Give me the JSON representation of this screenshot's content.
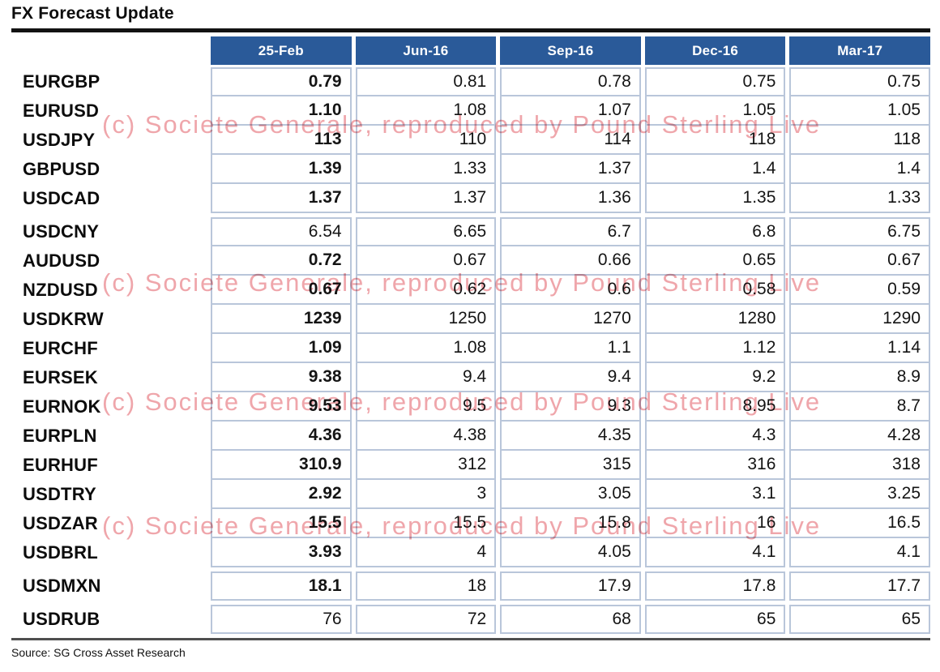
{
  "title": "FX Forecast Update",
  "source": "Source: SG Cross Asset Research",
  "watermark": {
    "text": "(c) Societe Generale, reproduced by Pound Sterling Live",
    "color": "#efa6ab"
  },
  "colors": {
    "header_bg": "#2a5a99",
    "header_text": "#ffffff",
    "grid_border": "#b9c6da"
  },
  "chart_data": {
    "type": "table",
    "title": "FX Forecast Update",
    "columns": [
      "25-Feb",
      "Jun-16",
      "Sep-16",
      "Dec-16",
      "Mar-17"
    ],
    "sections": [
      {
        "rows": [
          {
            "pair": "EURGBP",
            "values": [
              "0.79",
              "0.81",
              "0.78",
              "0.75",
              "0.75"
            ],
            "spot_bold": true
          },
          {
            "pair": "EURUSD",
            "values": [
              "1.10",
              "1.08",
              "1.07",
              "1.05",
              "1.05"
            ],
            "spot_bold": true
          },
          {
            "pair": "USDJPY",
            "values": [
              "113",
              "110",
              "114",
              "118",
              "118"
            ],
            "spot_bold": true
          },
          {
            "pair": "GBPUSD",
            "values": [
              "1.39",
              "1.33",
              "1.37",
              "1.4",
              "1.4"
            ],
            "spot_bold": true
          },
          {
            "pair": "USDCAD",
            "values": [
              "1.37",
              "1.37",
              "1.36",
              "1.35",
              "1.33"
            ],
            "spot_bold": true
          }
        ]
      },
      {
        "rows": [
          {
            "pair": "USDCNY",
            "values": [
              "6.54",
              "6.65",
              "6.7",
              "6.8",
              "6.75"
            ],
            "spot_bold": false
          },
          {
            "pair": "AUDUSD",
            "values": [
              "0.72",
              "0.67",
              "0.66",
              "0.65",
              "0.67"
            ],
            "spot_bold": true
          },
          {
            "pair": "NZDUSD",
            "values": [
              "0.67",
              "0.62",
              "0.6",
              "0.58",
              "0.59"
            ],
            "spot_bold": true
          },
          {
            "pair": "USDKRW",
            "values": [
              "1239",
              "1250",
              "1270",
              "1280",
              "1290"
            ],
            "spot_bold": true
          },
          {
            "pair": "EURCHF",
            "values": [
              "1.09",
              "1.08",
              "1.1",
              "1.12",
              "1.14"
            ],
            "spot_bold": true
          },
          {
            "pair": "EURSEK",
            "values": [
              "9.38",
              "9.4",
              "9.4",
              "9.2",
              "8.9"
            ],
            "spot_bold": true
          },
          {
            "pair": "EURNOK",
            "values": [
              "9.53",
              "9.5",
              "9.3",
              "8.95",
              "8.7"
            ],
            "spot_bold": true
          },
          {
            "pair": "EURPLN",
            "values": [
              "4.36",
              "4.38",
              "4.35",
              "4.3",
              "4.28"
            ],
            "spot_bold": true
          },
          {
            "pair": "EURHUF",
            "values": [
              "310.9",
              "312",
              "315",
              "316",
              "318"
            ],
            "spot_bold": true
          },
          {
            "pair": "USDTRY",
            "values": [
              "2.92",
              "3",
              "3.05",
              "3.1",
              "3.25"
            ],
            "spot_bold": true
          },
          {
            "pair": "USDZAR",
            "values": [
              "15.5",
              "15.5",
              "15.8",
              "16",
              "16.5"
            ],
            "spot_bold": true
          },
          {
            "pair": "USDBRL",
            "values": [
              "3.93",
              "4",
              "4.05",
              "4.1",
              "4.1"
            ],
            "spot_bold": true
          }
        ]
      },
      {
        "rows": [
          {
            "pair": "USDMXN",
            "values": [
              "18.1",
              "18",
              "17.9",
              "17.8",
              "17.7"
            ],
            "spot_bold": true
          }
        ]
      },
      {
        "rows": [
          {
            "pair": "USDRUB",
            "values": [
              "76",
              "72",
              "68",
              "65",
              "65"
            ],
            "spot_bold": false
          }
        ]
      }
    ]
  }
}
